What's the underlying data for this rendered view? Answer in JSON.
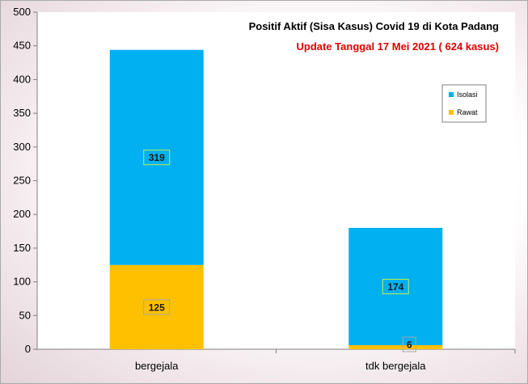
{
  "chart_data": {
    "type": "bar",
    "stacked": true,
    "title": "Positif Aktif  (Sisa Kasus) Covid 19 di Kota Padang",
    "subtitle": "Update Tanggal 17 Mei 2021  ( 624 kasus)",
    "categories": [
      "bergejala",
      "tdk bergejala"
    ],
    "series": [
      {
        "name": "Rawat",
        "values": [
          125,
          6
        ],
        "color": "#ffc000"
      },
      {
        "name": "Isolasi",
        "values": [
          319,
          174
        ],
        "color": "#00b0f0"
      }
    ],
    "ylim": [
      0,
      500
    ],
    "yticks": [
      "0",
      "50",
      "100",
      "150",
      "200",
      "250",
      "300",
      "350",
      "400",
      "450",
      "500"
    ],
    "grid": false,
    "legend_position": "right",
    "title_color": "#000000",
    "subtitle_color": "#e00000"
  }
}
